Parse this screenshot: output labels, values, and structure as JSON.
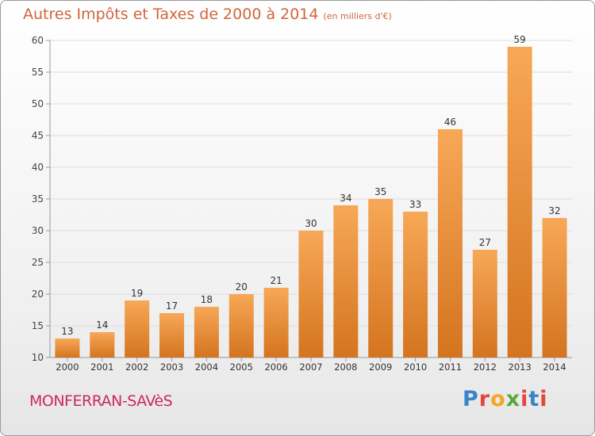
{
  "header": {
    "title": "Autres Impôts et Taxes de 2000 à 2014",
    "unit": "(en milliers d'€)"
  },
  "footer": {
    "place": "MONFERRAN-SAVèS",
    "brand": "Proxiti",
    "brand_colors": [
      "#3a83c8",
      "#e2463c",
      "#f5a623",
      "#5aa83c",
      "#e2463c",
      "#3a83c8",
      "#e2463c"
    ]
  },
  "colors": {
    "bar_light": "#f7a857",
    "bar_dark": "#d4741f",
    "title": "#d0653a",
    "place": "#cc2a5c"
  },
  "chart_data": {
    "type": "bar",
    "title": "Autres Impôts et Taxes de 2000 à 2014",
    "subtitle": "(en milliers d'€)",
    "categories": [
      "2000",
      "2001",
      "2002",
      "2003",
      "2004",
      "2005",
      "2006",
      "2007",
      "2008",
      "2009",
      "2010",
      "2011",
      "2012",
      "2013",
      "2014"
    ],
    "values": [
      13,
      14,
      19,
      17,
      18,
      20,
      21,
      30,
      34,
      35,
      33,
      46,
      27,
      59,
      32
    ],
    "ylim": [
      10,
      60
    ],
    "yticks": [
      10,
      15,
      20,
      25,
      30,
      35,
      40,
      45,
      50,
      55,
      60
    ],
    "grid": true,
    "data_labels": true
  }
}
